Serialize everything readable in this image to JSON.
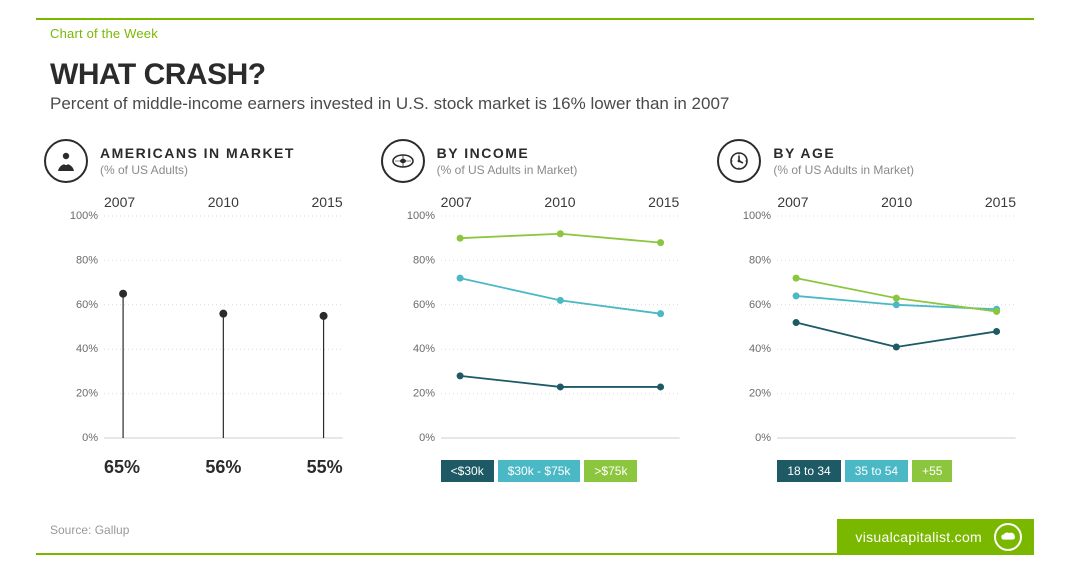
{
  "kicker": "Chart of the Week",
  "headline": "WHAT CRASH?",
  "subtitle": "Percent of middle-income earners invested in U.S. stock market is 16% lower than in 2007",
  "source_label": "Source: Gallup",
  "brand_text": "visualcapitalist.com",
  "colors": {
    "accent": "#7ab800",
    "text": "#2b2b2b",
    "muted": "#8a8a8a",
    "grid": "#d9d9d9",
    "series_dark_teal": "#1e5a66",
    "series_light_teal": "#4bb8c6",
    "series_green": "#8cc63f",
    "chip_dark": "#1e5a66",
    "chip_mid": "#4bb8c6",
    "chip_green": "#8cc63f"
  },
  "years": [
    "2007",
    "2010",
    "2015"
  ],
  "axis": {
    "ymin": 0,
    "ymax": 100,
    "ystep": 20,
    "tick_labels": [
      "0%",
      "20%",
      "40%",
      "60%",
      "80%",
      "100%"
    ]
  },
  "panel1": {
    "title": "AMERICANS IN MARKET",
    "sub": "(% of US Adults)",
    "type": "lollipop",
    "values": [
      65,
      56,
      55
    ],
    "value_labels": [
      "65%",
      "56%",
      "55%"
    ]
  },
  "panel2": {
    "title": "BY INCOME",
    "sub": "(% of US Adults in Market)",
    "type": "line",
    "series": [
      {
        "label": "<$30k",
        "color": "#1e5a66",
        "values": [
          28,
          23,
          23
        ]
      },
      {
        "label": "$30k - $75k",
        "color": "#4bb8c6",
        "values": [
          72,
          62,
          56
        ]
      },
      {
        "label": ">$75k",
        "color": "#8cc63f",
        "values": [
          90,
          92,
          88
        ]
      }
    ]
  },
  "panel3": {
    "title": "BY AGE",
    "sub": "(% of US Adults in Market)",
    "type": "line",
    "series": [
      {
        "label": "18 to 34",
        "color": "#1e5a66",
        "values": [
          52,
          41,
          48
        ]
      },
      {
        "label": "35 to 54",
        "color": "#4bb8c6",
        "values": [
          64,
          60,
          58
        ]
      },
      {
        "label": "+55",
        "color": "#8cc63f",
        "values": [
          72,
          63,
          57
        ]
      }
    ]
  }
}
